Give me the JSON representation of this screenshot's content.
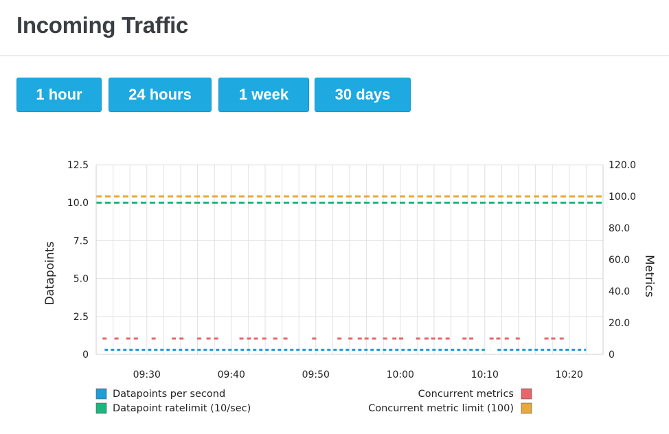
{
  "header": {
    "title": "Incoming Traffic"
  },
  "range_buttons": [
    {
      "label": "1 hour"
    },
    {
      "label": "24 hours"
    },
    {
      "label": "1 week"
    },
    {
      "label": "30 days"
    }
  ],
  "chart_data": {
    "type": "line",
    "title": "",
    "x_ticks": [
      "09:30",
      "09:40",
      "09:50",
      "10:00",
      "10:10",
      "10:20"
    ],
    "x_tick_minutes": [
      570,
      580,
      590,
      600,
      610,
      620
    ],
    "x_range_minutes": [
      564,
      624
    ],
    "y_left": {
      "label": "Datapoints",
      "range": [
        0,
        12.5
      ],
      "ticks": [
        "0",
        "2.5",
        "5.0",
        "7.5",
        "10.0",
        "12.5"
      ]
    },
    "y_right": {
      "label": "Metrics",
      "range": [
        0,
        120
      ],
      "ticks": [
        "0",
        "20.0",
        "40.0",
        "60.0",
        "80.0",
        "100.0",
        "120.0"
      ]
    },
    "grid": true,
    "series": [
      {
        "name": "Datapoints per second",
        "axis": "left",
        "color": "#1f9dd6",
        "style": "dotted",
        "segments": [
          [
            565,
            610
          ],
          [
            611.5,
            622
          ]
        ],
        "value": 0.3
      },
      {
        "name": "Datapoint ratelimit (10/sec)",
        "axis": "left",
        "color": "#1fb57e",
        "style": "dashed",
        "segments": [
          [
            564,
            624
          ]
        ],
        "value": 10
      },
      {
        "name": "Concurrent metrics",
        "axis": "right",
        "color": "#e8656a",
        "style": "dashes",
        "value": 10,
        "points": [
          565,
          566.4,
          567.8,
          568.7,
          570.8,
          573.2,
          574.1,
          576.2,
          577.3,
          578.2,
          581.2,
          582.1,
          582.9,
          583.9,
          585.2,
          586.4,
          589.8,
          592.8,
          594.1,
          595.2,
          596,
          596.9,
          598.2,
          599.3,
          600.1,
          602.1,
          603.1,
          603.9,
          604.7,
          605.6,
          607.6,
          608.4,
          610.8,
          611.6,
          612.6,
          613.9,
          617.3,
          618.1,
          619.1
        ]
      },
      {
        "name": "Concurrent metric limit (100)",
        "axis": "right",
        "color": "#e6a93a",
        "style": "dashed",
        "segments": [
          [
            564,
            624
          ]
        ],
        "value": 100
      }
    ],
    "legend": {
      "placement": "bottom"
    }
  }
}
